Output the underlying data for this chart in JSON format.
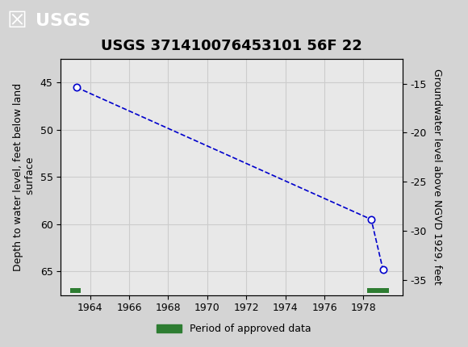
{
  "title": "USGS 371410076453101 56F 22",
  "header_color": "#1a6b3c",
  "bg_color": "#d4d4d4",
  "plot_bg_color": "#e8e8e8",
  "ylabel_left": "Depth to water level, feet below land\n surface",
  "ylabel_right": "Groundwater level above NGVD 1929, feet",
  "xlim": [
    1962.5,
    1980.0
  ],
  "ylim_left": [
    67.5,
    42.5
  ],
  "ylim_right": [
    -36.5,
    -12.5
  ],
  "xticks": [
    1964,
    1966,
    1968,
    1970,
    1972,
    1974,
    1976,
    1978
  ],
  "yticks_left": [
    45,
    50,
    55,
    60,
    65
  ],
  "yticks_right": [
    -15,
    -20,
    -25,
    -30,
    -35
  ],
  "data_x": [
    1963.3,
    1978.4,
    1979.0
  ],
  "data_y": [
    45.5,
    59.5,
    64.8
  ],
  "line_color": "#0000cc",
  "marker_color": "#0000cc",
  "marker_face": "white",
  "marker_size": 6,
  "line_style": "--",
  "grid_color": "#cccccc",
  "period_bars": [
    {
      "x_start": 1963.0,
      "x_end": 1963.5,
      "y": 67.0
    },
    {
      "x_start": 1978.2,
      "x_end": 1979.3,
      "y": 67.0
    }
  ],
  "period_bar_color": "#2e7d32",
  "legend_label": "Period of approved data",
  "font_family": "DejaVu Sans",
  "title_fontsize": 13,
  "axis_fontsize": 9,
  "tick_fontsize": 9
}
